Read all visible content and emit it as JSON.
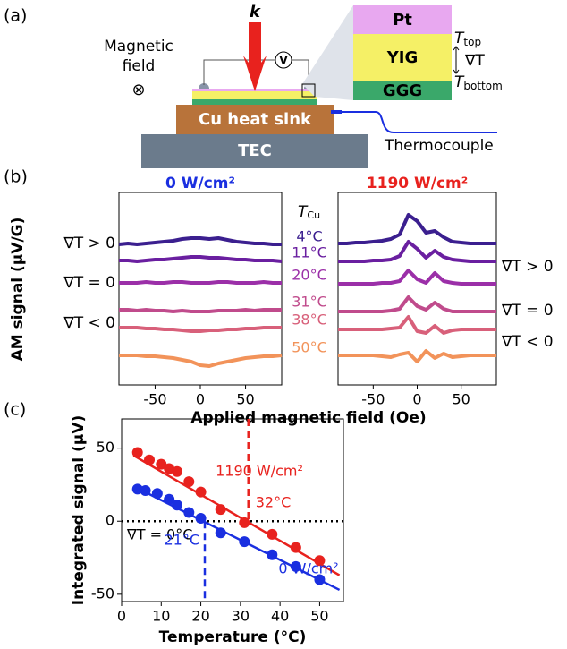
{
  "panel_labels": [
    "(a)",
    "(b)",
    "(c)"
  ],
  "diagram": {
    "beam_label": "k",
    "voltmeter": "V",
    "field_label": [
      "Magnetic",
      "field"
    ],
    "field_symbol": "⊗",
    "layers": [
      "Pt",
      "YIG",
      "GGG"
    ],
    "t_top": {
      "symbol": "T",
      "sub": "top"
    },
    "gradient": "∇T",
    "t_bottom": {
      "symbol": "T",
      "sub": "bottom"
    },
    "heat_sink": "Cu heat sink",
    "tec": "TEC",
    "thermocouple": "Thermocouple"
  },
  "chart_data": [
    {
      "type": "line",
      "title": "0 W/cm²",
      "title_color": "#1a2fe0",
      "x_label": "Applied magnetic field (Oe)",
      "y_label": "AM signal (μV/G)",
      "legend_title": {
        "symbol": "T",
        "sub": "Cu"
      },
      "annotations": [
        "∇T > 0",
        "∇T = 0",
        "∇T < 0"
      ],
      "x": [
        -90,
        -80,
        -70,
        -60,
        -50,
        -40,
        -30,
        -20,
        -10,
        0,
        10,
        20,
        30,
        40,
        50,
        60,
        70,
        80,
        90
      ],
      "xlim": [
        -90,
        90
      ],
      "xticks": [
        -50,
        0,
        50
      ],
      "ylim": [
        0,
        215
      ],
      "series": [
        {
          "name": "4°C",
          "color": "#3b1f8f",
          "values": [
            157,
            158,
            157,
            158,
            159,
            160,
            161,
            163,
            164,
            164,
            163,
            164,
            162,
            160,
            159,
            158,
            158,
            157,
            157
          ]
        },
        {
          "name": "11°C",
          "color": "#6a1fa0",
          "values": [
            139,
            139,
            138,
            139,
            140,
            140,
            141,
            142,
            143,
            143,
            142,
            142,
            141,
            140,
            140,
            139,
            139,
            139,
            138
          ]
        },
        {
          "name": "20°C",
          "color": "#9b2fa8",
          "values": [
            114,
            114,
            114,
            115,
            114,
            114,
            115,
            115,
            114,
            114,
            114,
            115,
            115,
            114,
            114,
            114,
            115,
            114,
            114
          ]
        },
        {
          "name": "31°C",
          "color": "#c04b8c",
          "values": [
            84,
            84,
            83,
            84,
            83,
            83,
            82,
            83,
            82,
            82,
            82,
            83,
            83,
            83,
            84,
            83,
            84,
            84,
            84
          ]
        },
        {
          "name": "38°C",
          "color": "#d8607a",
          "values": [
            64,
            64,
            64,
            63,
            63,
            62,
            62,
            61,
            60,
            60,
            61,
            61,
            62,
            62,
            63,
            63,
            64,
            64,
            64
          ]
        },
        {
          "name": "50°C",
          "color": "#f2935a",
          "values": [
            33,
            33,
            33,
            32,
            32,
            31,
            30,
            28,
            26,
            22,
            21,
            24,
            26,
            28,
            30,
            31,
            32,
            32,
            33
          ]
        }
      ]
    },
    {
      "type": "line",
      "title": "1190 W/cm²",
      "title_color": "#e8221e",
      "annotations": [
        "∇T > 0",
        "∇T = 0",
        "∇T < 0"
      ],
      "x": [
        -90,
        -80,
        -70,
        -60,
        -50,
        -40,
        -30,
        -20,
        -10,
        0,
        10,
        20,
        30,
        40,
        50,
        60,
        70,
        80,
        90
      ],
      "xlim": [
        -90,
        90
      ],
      "xticks": [
        -50,
        0,
        50
      ],
      "ylim": [
        0,
        215
      ],
      "series": [
        {
          "color": "#3b1f8f",
          "values": [
            158,
            158,
            159,
            159,
            160,
            161,
            163,
            168,
            190,
            183,
            170,
            172,
            165,
            160,
            159,
            158,
            158,
            158,
            158
          ]
        },
        {
          "color": "#6a1fa0",
          "values": [
            138,
            138,
            138,
            138,
            139,
            139,
            140,
            144,
            160,
            152,
            142,
            150,
            143,
            140,
            139,
            138,
            138,
            138,
            138
          ]
        },
        {
          "color": "#9b2fa8",
          "values": [
            113,
            113,
            113,
            113,
            113,
            114,
            114,
            116,
            128,
            118,
            114,
            125,
            116,
            114,
            113,
            113,
            113,
            113,
            113
          ]
        },
        {
          "color": "#c04b8c",
          "values": [
            82,
            82,
            82,
            82,
            82,
            82,
            83,
            85,
            98,
            88,
            84,
            92,
            85,
            82,
            82,
            82,
            82,
            82,
            82
          ]
        },
        {
          "color": "#d8607a",
          "values": [
            62,
            62,
            62,
            62,
            62,
            62,
            63,
            64,
            76,
            60,
            58,
            66,
            58,
            61,
            62,
            62,
            62,
            62,
            62
          ]
        },
        {
          "color": "#f2935a",
          "values": [
            33,
            33,
            33,
            33,
            33,
            32,
            31,
            34,
            36,
            26,
            38,
            30,
            35,
            31,
            32,
            33,
            33,
            33,
            33
          ]
        }
      ]
    },
    {
      "type": "scatter",
      "x_label": "Temperature (°C)",
      "y_label": "Integrated signal (μV)",
      "xlim": [
        0,
        56
      ],
      "xticks": [
        0,
        10,
        20,
        30,
        40,
        50
      ],
      "ylim": [
        -55,
        70
      ],
      "yticks": [
        -50,
        0,
        50
      ],
      "zero_label": "∇T = 0°C",
      "series": [
        {
          "name": "1190 W/cm²",
          "color": "#e8221e",
          "x": [
            4,
            7,
            10,
            12,
            14,
            17,
            20,
            25,
            31,
            38,
            44,
            50
          ],
          "values": [
            47,
            42,
            39,
            36,
            34,
            27,
            20,
            8,
            -1,
            -9,
            -18,
            -27
          ],
          "fit_x": [
            3,
            55
          ],
          "fit_values": [
            45,
            -37
          ],
          "marker": {
            "x": 32,
            "label": "32°C"
          }
        },
        {
          "name": "0 W/cm²",
          "color": "#1a2fe0",
          "x": [
            4,
            6,
            9,
            12,
            14,
            17,
            20,
            25,
            31,
            38,
            44,
            50
          ],
          "values": [
            22,
            21,
            19,
            15,
            11,
            6,
            2,
            -8,
            -14,
            -23,
            -31,
            -40
          ],
          "fit_x": [
            3,
            55
          ],
          "fit_values": [
            24,
            -47
          ],
          "marker": {
            "x": 21,
            "label": "21°C"
          }
        }
      ]
    }
  ]
}
